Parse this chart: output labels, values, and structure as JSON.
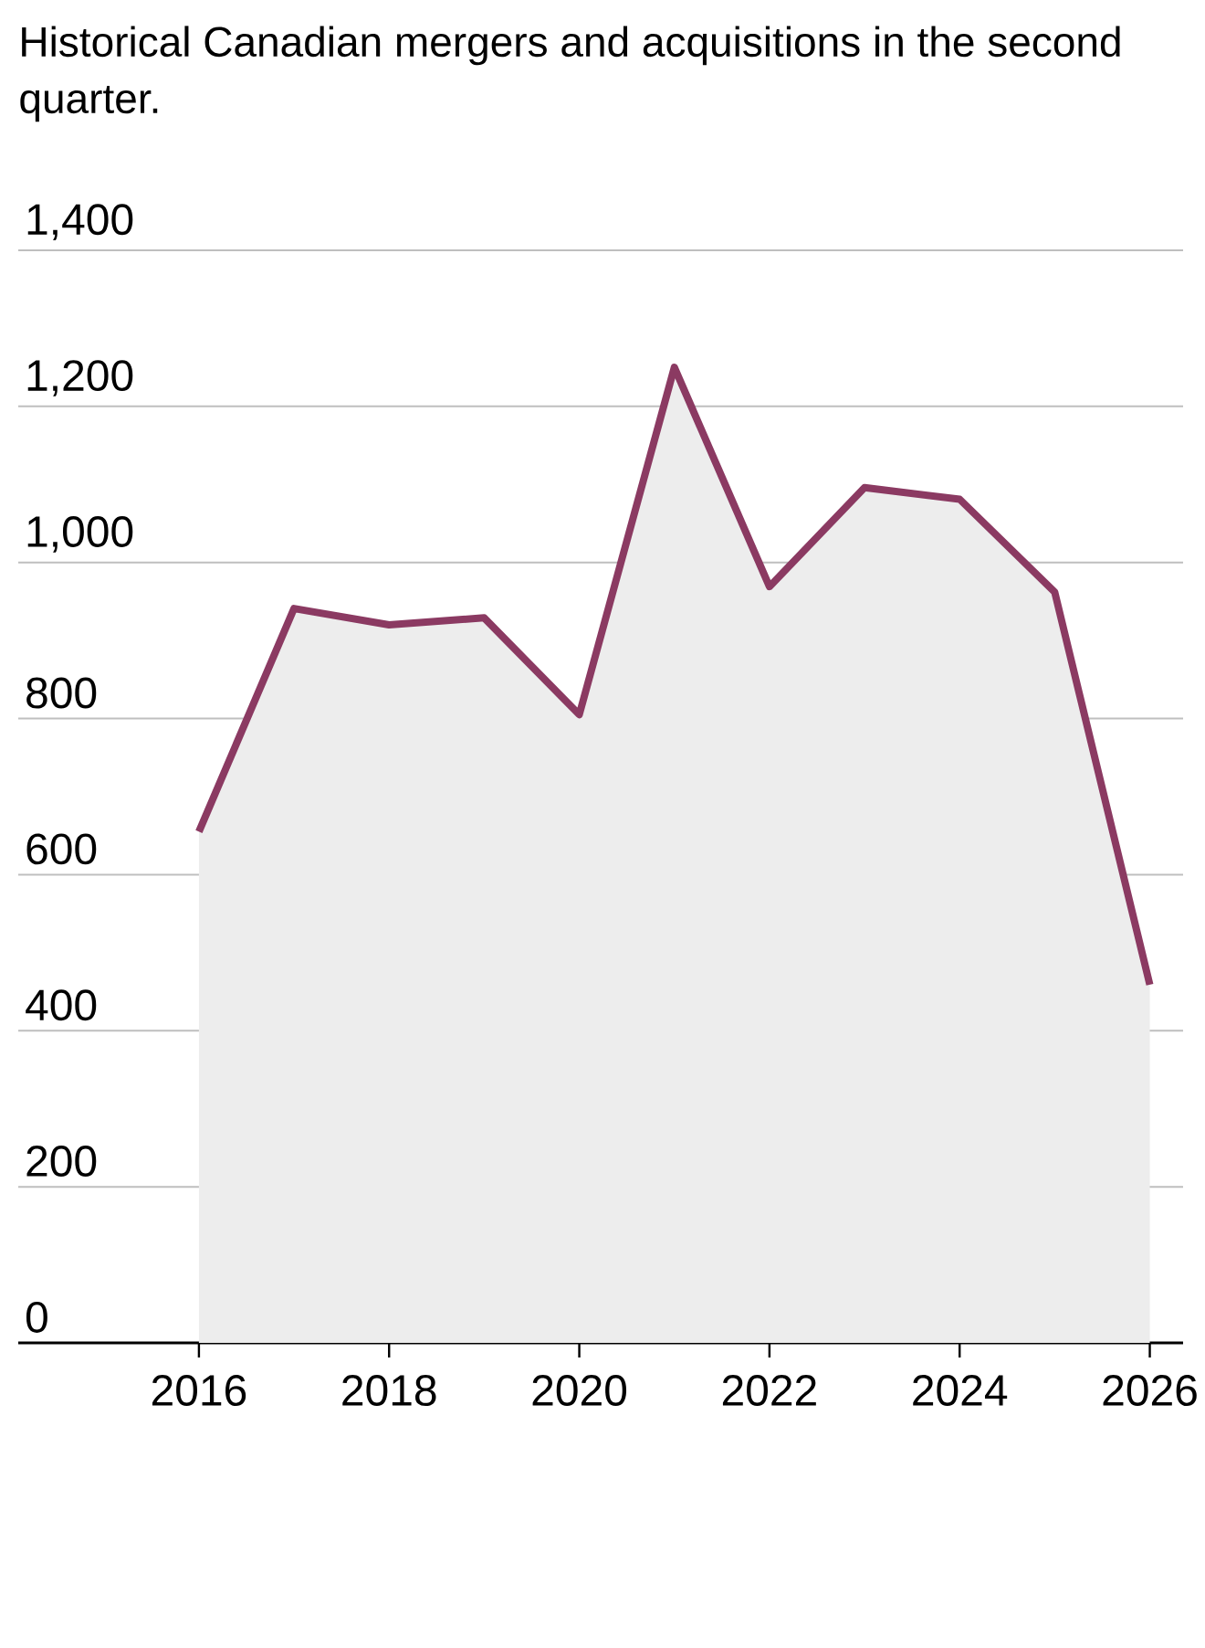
{
  "chart_data": {
    "type": "area",
    "title": "Historical Canadian mergers and acquisitions in the second quarter.",
    "x": [
      2016,
      2017,
      2018,
      2019,
      2020,
      2021,
      2022,
      2023,
      2024,
      2025,
      2026
    ],
    "series": [
      {
        "color": "#8b3a62",
        "values": [
          655,
          941,
          920,
          929,
          805,
          1250,
          969,
          1096,
          1081,
          962,
          459
        ]
      }
    ],
    "xlim": [
      2014.1,
      2026.35
    ],
    "xticks": [
      2016,
      2018,
      2020,
      2022,
      2024,
      2026
    ],
    "ylim": [
      0,
      1400
    ],
    "yticks": [
      0,
      {
        "value": 200,
        "label": "200"
      },
      {
        "value": 400,
        "label": "400"
      },
      {
        "value": 600,
        "label": "600"
      },
      {
        "value": 800,
        "label": "800"
      },
      {
        "value": 1000,
        "label": "1,000"
      },
      {
        "value": 1200,
        "label": "1,200"
      },
      {
        "value": 1400,
        "label": "1,400"
      }
    ],
    "grid": "y",
    "marker": "none"
  }
}
